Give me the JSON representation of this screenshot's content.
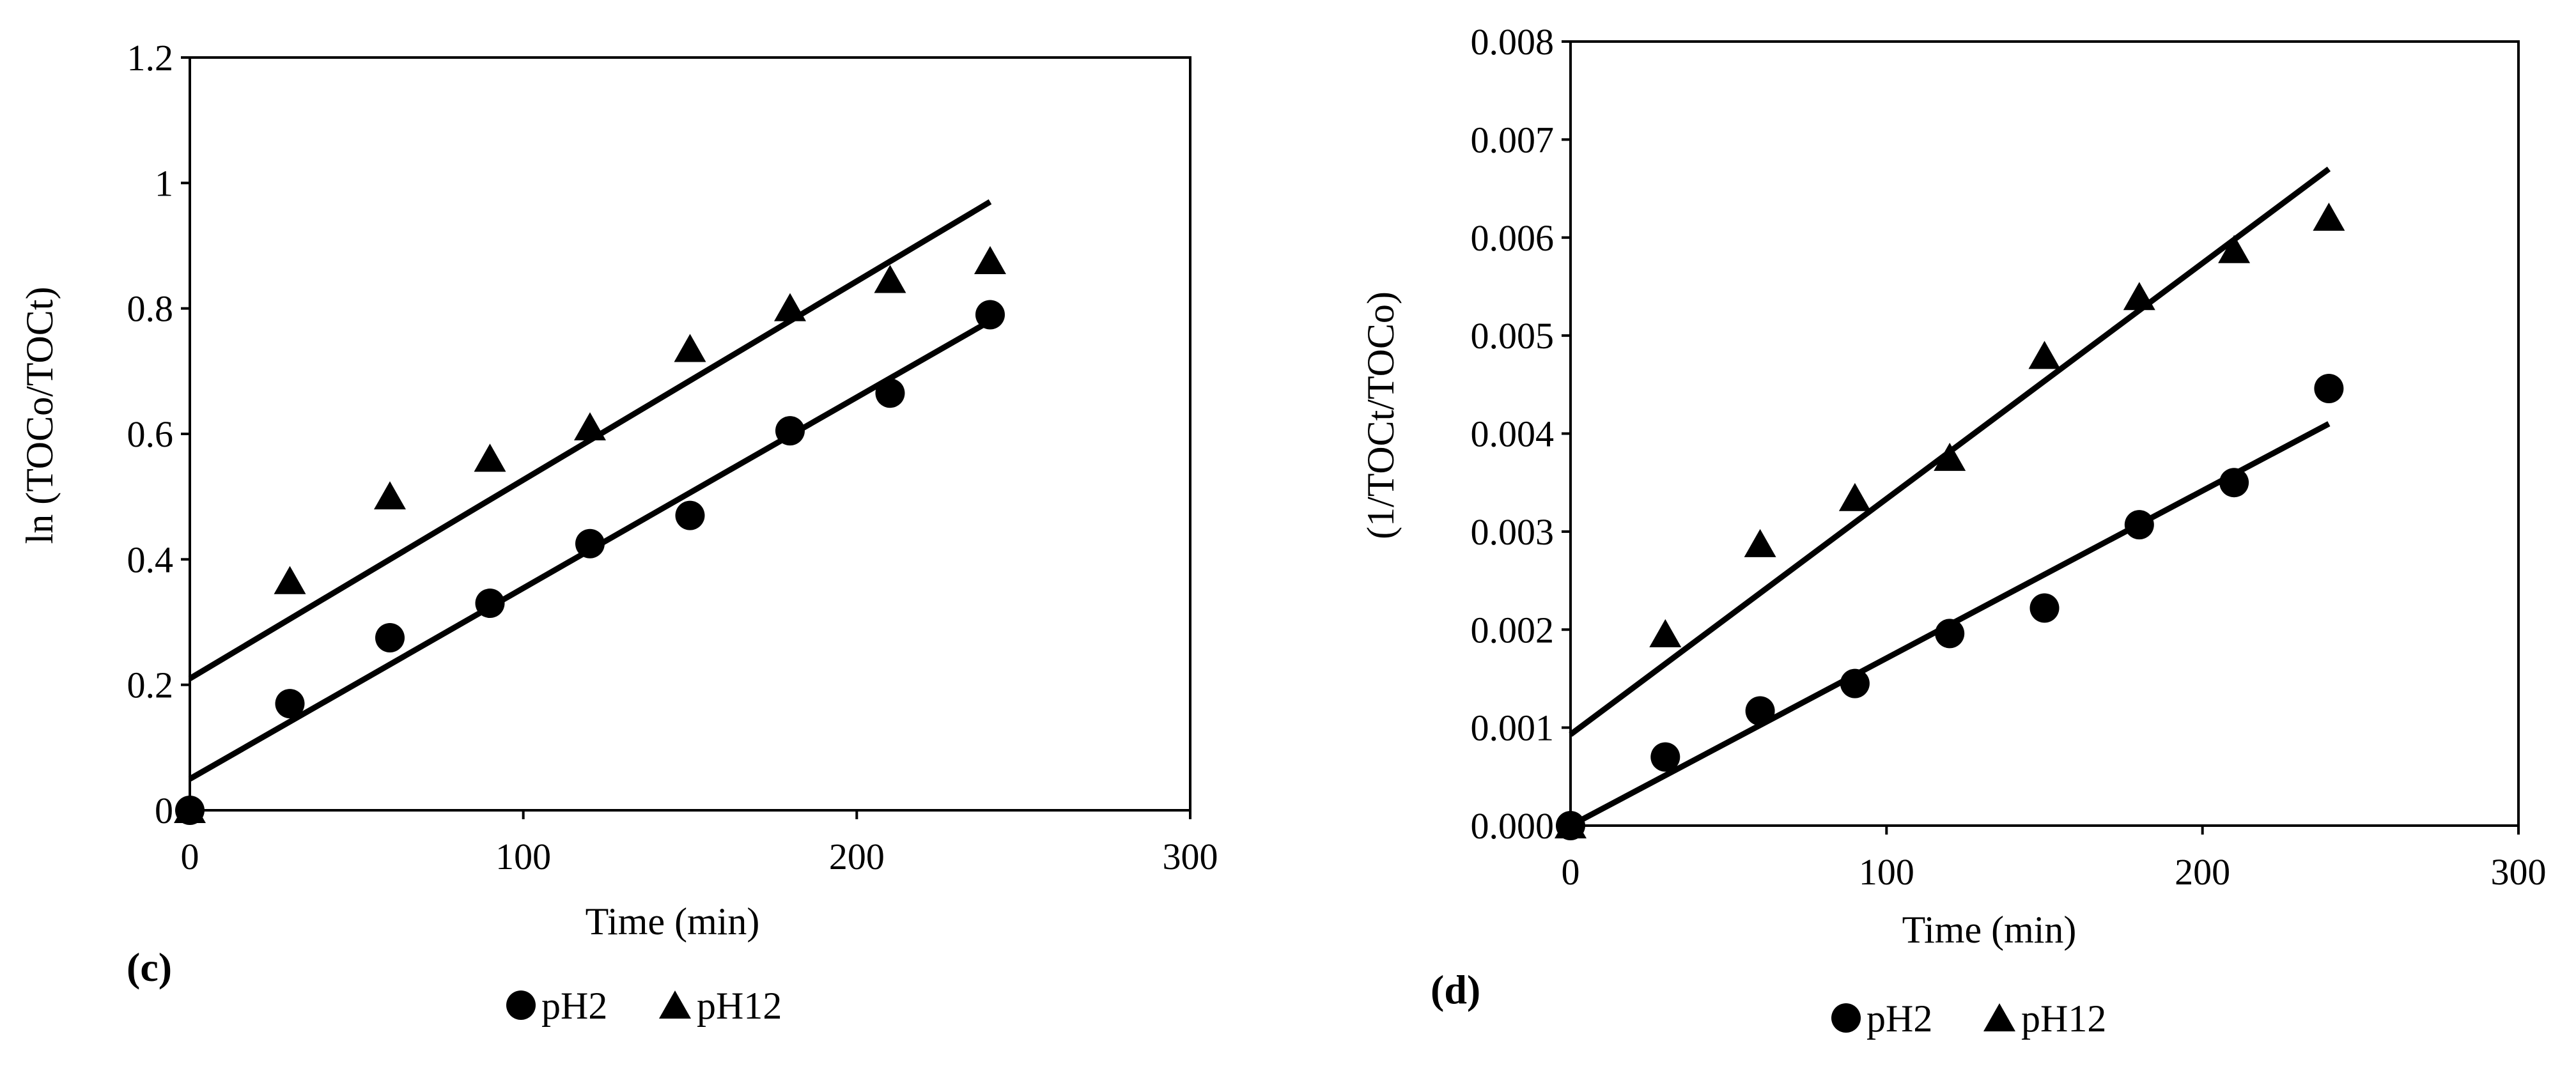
{
  "chart_data": [
    {
      "panel": "(c)",
      "type": "scatter",
      "xlabel": "Time (min)",
      "ylabel": "ln (TOCo/TOCt)",
      "xlim": [
        0,
        300
      ],
      "ylim": [
        0,
        1.2
      ],
      "x_ticks": [
        0,
        100,
        200,
        300
      ],
      "x_tick_labels": [
        "0",
        "100",
        "200",
        "300"
      ],
      "y_ticks": [
        0,
        0.2,
        0.4,
        0.6,
        0.8,
        1,
        1.2
      ],
      "y_tick_labels": [
        "0",
        "0.2",
        "0.4",
        "0.6",
        "0.8",
        "1",
        "1.2"
      ],
      "legend_placement": "bottom",
      "grid": false,
      "series": [
        {
          "name": "pH2",
          "marker": "circle",
          "x": [
            0,
            30,
            60,
            90,
            120,
            150,
            180,
            210,
            240
          ],
          "y": [
            0,
            0.17,
            0.275,
            0.33,
            0.425,
            0.47,
            0.605,
            0.665,
            0.79
          ],
          "fit": {
            "from": [
              0,
              0.05
            ],
            "to": [
              240,
              0.78
            ]
          }
        },
        {
          "name": "pH12",
          "marker": "triangle",
          "x": [
            0,
            30,
            60,
            90,
            120,
            150,
            180,
            210,
            240
          ],
          "y": [
            0,
            0.365,
            0.5,
            0.56,
            0.61,
            0.735,
            0.8,
            0.845,
            0.875
          ],
          "fit": {
            "from": [
              0,
              0.21
            ],
            "to": [
              240,
              0.97
            ]
          }
        }
      ]
    },
    {
      "panel": "(d)",
      "type": "scatter",
      "xlabel": "Time (min)",
      "ylabel": "(1/TOCt/TOCo)",
      "xlim": [
        0,
        300
      ],
      "ylim": [
        0,
        0.008
      ],
      "x_ticks": [
        0,
        100,
        200,
        300
      ],
      "x_tick_labels": [
        "0",
        "100",
        "200",
        "300"
      ],
      "y_ticks": [
        0,
        0.001,
        0.002,
        0.003,
        0.004,
        0.005,
        0.006,
        0.007,
        0.008
      ],
      "y_tick_labels": [
        "0.000",
        "0.001",
        "0.002",
        "0.003",
        "0.004",
        "0.005",
        "0.006",
        "0.007",
        "0.008"
      ],
      "legend_placement": "bottom",
      "grid": false,
      "series": [
        {
          "name": "pH2",
          "marker": "circle",
          "x": [
            0,
            30,
            60,
            90,
            120,
            150,
            180,
            210,
            240
          ],
          "y": [
            0,
            0.0007,
            0.00117,
            0.00145,
            0.00196,
            0.00222,
            0.00307,
            0.0035,
            0.00446
          ],
          "fit": {
            "from": [
              0,
              0
            ],
            "to": [
              240,
              0.0041
            ]
          }
        },
        {
          "name": "pH12",
          "marker": "triangle",
          "x": [
            0,
            30,
            60,
            90,
            120,
            150,
            180,
            210,
            240
          ],
          "y": [
            0,
            0.00195,
            0.00287,
            0.00334,
            0.00375,
            0.00479,
            0.00539,
            0.00587,
            0.0062
          ],
          "fit": {
            "from": [
              0,
              0.00093
            ],
            "to": [
              240,
              0.0067
            ]
          }
        }
      ]
    }
  ]
}
